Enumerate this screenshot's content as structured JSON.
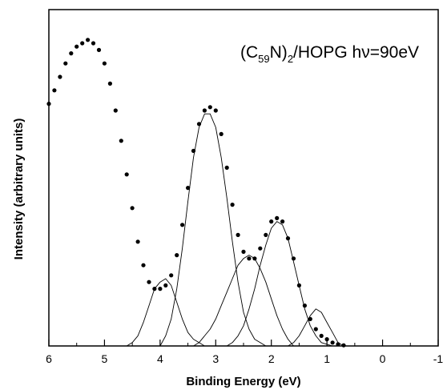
{
  "chart_data": {
    "type": "scatter",
    "title_parts": {
      "open": "(C",
      "sub1": "59",
      "mid": "N)",
      "sub2": "2",
      "rest": "/HOPG hν=90eV"
    },
    "xlabel": "Binding Energy (eV)",
    "ylabel": "Intensity (arbitrary units)",
    "xlim": [
      6,
      -1
    ],
    "x_reversed": true,
    "x_ticks": [
      "6",
      "5",
      "4",
      "3",
      "2",
      "1",
      "0",
      "-1"
    ],
    "y_ticks_labeled": false,
    "series": [
      {
        "kind": "points",
        "marker": "filled-circle",
        "x": [
          6.0,
          5.9,
          5.8,
          5.7,
          5.6,
          5.5,
          5.4,
          5.3,
          5.2,
          5.1,
          5.0,
          4.9,
          4.8,
          4.7,
          4.6,
          4.5,
          4.4,
          4.3,
          4.2,
          4.1,
          4.0,
          3.9,
          3.8,
          3.7,
          3.6,
          3.5,
          3.4,
          3.3,
          3.2,
          3.1,
          3.0,
          2.9,
          2.8,
          2.7,
          2.6,
          2.5,
          2.4,
          2.3,
          2.2,
          2.1,
          2.0,
          1.9,
          1.8,
          1.7,
          1.6,
          1.5,
          1.4,
          1.3,
          1.2,
          1.1,
          1.0,
          0.9,
          0.8,
          0.7
        ],
        "y": [
          0.72,
          0.76,
          0.8,
          0.84,
          0.87,
          0.89,
          0.9,
          0.91,
          0.9,
          0.88,
          0.84,
          0.78,
          0.7,
          0.61,
          0.51,
          0.41,
          0.31,
          0.24,
          0.19,
          0.17,
          0.17,
          0.18,
          0.21,
          0.27,
          0.36,
          0.47,
          0.58,
          0.66,
          0.7,
          0.71,
          0.7,
          0.63,
          0.53,
          0.42,
          0.33,
          0.28,
          0.26,
          0.26,
          0.29,
          0.33,
          0.37,
          0.38,
          0.37,
          0.32,
          0.26,
          0.18,
          0.12,
          0.08,
          0.05,
          0.03,
          0.02,
          0.01,
          0.005,
          0.002
        ]
      },
      {
        "kind": "gaussian-component",
        "x": [
          4.6,
          4.5,
          4.4,
          4.3,
          4.2,
          4.1,
          4.0,
          3.9,
          3.8,
          3.7,
          3.6,
          3.5,
          3.4,
          3.3,
          3.2
        ],
        "y": [
          0.0,
          0.01,
          0.03,
          0.07,
          0.12,
          0.17,
          0.19,
          0.2,
          0.18,
          0.13,
          0.08,
          0.04,
          0.02,
          0.01,
          0.0
        ]
      },
      {
        "kind": "gaussian-component",
        "x": [
          4.0,
          3.9,
          3.8,
          3.7,
          3.6,
          3.5,
          3.4,
          3.3,
          3.2,
          3.1,
          3.0,
          2.9,
          2.8,
          2.7,
          2.6,
          2.5,
          2.4,
          2.3,
          2.2,
          2.1
        ],
        "y": [
          0.0,
          0.03,
          0.08,
          0.17,
          0.29,
          0.43,
          0.56,
          0.65,
          0.69,
          0.69,
          0.65,
          0.56,
          0.44,
          0.31,
          0.19,
          0.1,
          0.05,
          0.02,
          0.01,
          0.0
        ]
      },
      {
        "kind": "gaussian-component",
        "x": [
          3.4,
          3.3,
          3.2,
          3.1,
          3.0,
          2.9,
          2.8,
          2.7,
          2.6,
          2.5,
          2.4,
          2.3,
          2.2,
          2.1,
          2.0,
          1.9,
          1.8,
          1.7,
          1.6
        ],
        "y": [
          0.0,
          0.01,
          0.03,
          0.05,
          0.08,
          0.12,
          0.16,
          0.2,
          0.24,
          0.26,
          0.27,
          0.26,
          0.23,
          0.19,
          0.14,
          0.09,
          0.05,
          0.02,
          0.0
        ]
      },
      {
        "kind": "gaussian-component",
        "x": [
          2.8,
          2.7,
          2.6,
          2.5,
          2.4,
          2.3,
          2.2,
          2.1,
          2.0,
          1.9,
          1.8,
          1.7,
          1.6,
          1.5,
          1.4,
          1.3,
          1.2,
          1.1,
          1.0,
          0.9
        ],
        "y": [
          0.0,
          0.01,
          0.03,
          0.06,
          0.11,
          0.17,
          0.24,
          0.3,
          0.35,
          0.37,
          0.36,
          0.32,
          0.25,
          0.18,
          0.11,
          0.06,
          0.03,
          0.01,
          0.005,
          0.0
        ]
      },
      {
        "kind": "gaussian-component",
        "x": [
          1.7,
          1.6,
          1.5,
          1.4,
          1.3,
          1.2,
          1.1,
          1.0,
          0.9,
          0.8,
          0.7
        ],
        "y": [
          0.0,
          0.01,
          0.03,
          0.06,
          0.09,
          0.11,
          0.1,
          0.07,
          0.04,
          0.01,
          0.0
        ]
      }
    ]
  }
}
